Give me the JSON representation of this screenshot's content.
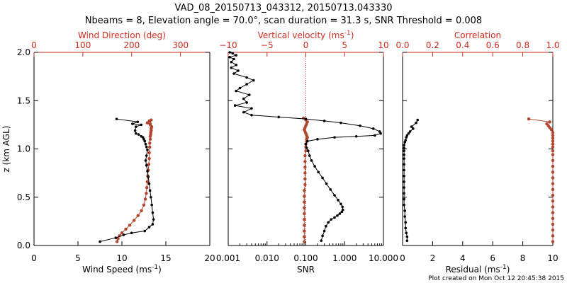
{
  "title_line1": "VAD_08_20150713_043312, 20150713.043330",
  "title_line2": "Nbeams = 8, Elevation angle = 70.0°, scan duration = 31.3 s, SNR Threshold = 0.008",
  "footer": "Plot created on Mon Oct 12 20:45:38 2015",
  "colors": {
    "black": "#000000",
    "red": "#d12a1c",
    "brown": "#b0442c"
  },
  "chart_data": [
    {
      "type": "line",
      "panel": "left",
      "ylabel": "z (km AGL)",
      "ylim": [
        0,
        2.0
      ],
      "yticks": [
        "0.0",
        "0.5",
        "1.0",
        "1.5",
        "2.0"
      ],
      "bottom_axis": {
        "label": "Wind Speed (ms⁻¹)",
        "lim": [
          0,
          20
        ],
        "ticks": [
          "0",
          "5",
          "10",
          "15",
          "20"
        ]
      },
      "top_axis": {
        "label": "Wind Direction (deg)",
        "lim": [
          0,
          360
        ],
        "ticks": [
          "0",
          "100",
          "200",
          "300"
        ]
      },
      "series": [
        {
          "axis": "bottom",
          "color": "#000000",
          "x": [
            7.5,
            9.3,
            10.2,
            11.1,
            12.6,
            13.1,
            13.5,
            13.6,
            13.5,
            13.4,
            13.3,
            13.2,
            13.1,
            13.0,
            12.9,
            12.8,
            12.7,
            12.8,
            12.9,
            12.8,
            12.7,
            12.6,
            12.5,
            12.4,
            12.2,
            11.9,
            11.6,
            11.5,
            11.6,
            12.2,
            11.2,
            11.8,
            9.4
          ],
          "y": [
            0.04,
            0.08,
            0.11,
            0.13,
            0.15,
            0.19,
            0.22,
            0.27,
            0.34,
            0.42,
            0.5,
            0.57,
            0.64,
            0.71,
            0.77,
            0.83,
            0.88,
            0.93,
            0.99,
            1.02,
            1.05,
            1.08,
            1.1,
            1.12,
            1.13,
            1.15,
            1.16,
            1.19,
            1.23,
            1.25,
            1.26,
            1.28,
            1.31
          ]
        },
        {
          "axis": "top",
          "color": "#b0442c",
          "x": [
            170,
            172,
            175,
            180,
            188,
            196,
            205,
            213,
            220,
            225,
            228,
            230,
            231,
            232,
            233,
            234,
            235,
            236,
            236,
            237,
            237,
            238,
            238,
            239,
            239,
            240,
            240,
            241,
            238,
            232,
            236,
            240,
            238
          ],
          "y": [
            0.04,
            0.07,
            0.1,
            0.13,
            0.17,
            0.21,
            0.26,
            0.31,
            0.36,
            0.42,
            0.48,
            0.54,
            0.6,
            0.66,
            0.72,
            0.78,
            0.84,
            0.9,
            0.96,
            1.02,
            1.06,
            1.1,
            1.13,
            1.15,
            1.17,
            1.19,
            1.21,
            1.23,
            1.25,
            1.27,
            1.29,
            1.3,
            1.26
          ]
        }
      ]
    },
    {
      "type": "line",
      "panel": "middle",
      "ylim": [
        0,
        2.0
      ],
      "bottom_axis": {
        "label": "SNR",
        "scale": "log",
        "lim": [
          0.001,
          10
        ],
        "ticks": [
          "0.001",
          "0.010",
          "0.100",
          "1.000",
          "10.000"
        ]
      },
      "top_axis": {
        "label": "Vertical velocity (ms⁻¹)",
        "lim": [
          -10,
          10
        ],
        "ticks": [
          "−10",
          "−5",
          "0",
          "5",
          "10"
        ]
      },
      "zero_line_color": "#d12a1c",
      "series": [
        {
          "axis": "bottom",
          "color": "#000000",
          "x": [
            0.25,
            0.27,
            0.3,
            0.33,
            0.38,
            0.45,
            0.55,
            0.65,
            0.75,
            0.85,
            0.9,
            0.88,
            0.8,
            0.68,
            0.55,
            0.43,
            0.34,
            0.27,
            0.21,
            0.17,
            0.14,
            0.125,
            0.115,
            0.105,
            0.1,
            0.11,
            0.2,
            0.55,
            2.0,
            6.0,
            8.5,
            8.0,
            5.5,
            2.5,
            0.8,
            0.3,
            0.1,
            0.02,
            0.004,
            0.0025,
            0.004,
            0.0015,
            0.003,
            0.0025,
            0.0035,
            0.0016,
            0.002,
            0.003,
            0.0045,
            0.003,
            0.0014,
            0.0018,
            0.0012,
            0.0016,
            0.0012,
            0.0014,
            0.0011,
            0.0016,
            0.0013,
            0.0011
          ],
          "y": [
            0.05,
            0.1,
            0.15,
            0.2,
            0.24,
            0.27,
            0.29,
            0.31,
            0.33,
            0.35,
            0.37,
            0.4,
            0.43,
            0.47,
            0.52,
            0.58,
            0.64,
            0.7,
            0.76,
            0.82,
            0.88,
            0.93,
            0.98,
            1.01,
            1.05,
            1.08,
            1.1,
            1.12,
            1.13,
            1.14,
            1.16,
            1.18,
            1.21,
            1.24,
            1.27,
            1.29,
            1.31,
            1.33,
            1.35,
            1.38,
            1.42,
            1.45,
            1.48,
            1.52,
            1.56,
            1.6,
            1.63,
            1.67,
            1.71,
            1.74,
            1.78,
            1.81,
            1.84,
            1.87,
            1.9,
            1.93,
            1.95,
            1.97,
            1.99,
            2.0
          ]
        },
        {
          "axis": "top",
          "color": "#b0442c",
          "x": [
            -0.2,
            -0.2,
            -0.2,
            -0.2,
            -0.2,
            -0.2,
            -0.2,
            -0.2,
            -0.2,
            -0.2,
            -0.1,
            -0.1,
            -0.1,
            -0.1,
            -0.1,
            -0.1,
            0.0,
            0.0,
            0.0,
            0.1,
            0.1,
            0.2,
            0.1,
            0.0,
            -0.1,
            -0.2,
            -0.1,
            0.0,
            0.1,
            0.2,
            0.0,
            -0.3
          ],
          "y": [
            0.04,
            0.09,
            0.15,
            0.21,
            0.27,
            0.33,
            0.39,
            0.45,
            0.51,
            0.57,
            0.63,
            0.69,
            0.75,
            0.81,
            0.87,
            0.93,
            0.98,
            1.02,
            1.05,
            1.08,
            1.1,
            1.12,
            1.14,
            1.16,
            1.18,
            1.2,
            1.22,
            1.24,
            1.26,
            1.28,
            1.3,
            1.32
          ]
        }
      ]
    },
    {
      "type": "line",
      "panel": "right",
      "ylim": [
        0,
        2.0
      ],
      "bottom_axis": {
        "label": "Residual (ms⁻¹)",
        "lim": [
          0,
          10
        ],
        "ticks": [
          "0",
          "2",
          "4",
          "6",
          "8",
          "10"
        ]
      },
      "top_axis": {
        "label": "Correlation",
        "lim": [
          0,
          1.0
        ],
        "ticks": [
          "0.0",
          "0.2",
          "0.4",
          "0.6",
          "0.8",
          "1.0"
        ]
      },
      "series": [
        {
          "axis": "bottom",
          "color": "#000000",
          "x": [
            0.3,
            0.3,
            0.25,
            0.2,
            0.2,
            0.15,
            0.15,
            0.1,
            0.1,
            0.1,
            0.1,
            0.1,
            0.1,
            0.1,
            0.1,
            0.1,
            0.1,
            0.1,
            0.1,
            0.1,
            0.15,
            0.2,
            0.25,
            0.3,
            0.4,
            0.5,
            0.7,
            0.6,
            0.9,
            1.0
          ],
          "y": [
            0.05,
            0.09,
            0.13,
            0.18,
            0.24,
            0.3,
            0.36,
            0.42,
            0.48,
            0.54,
            0.6,
            0.66,
            0.72,
            0.78,
            0.84,
            0.9,
            0.94,
            0.98,
            1.01,
            1.04,
            1.07,
            1.09,
            1.12,
            1.14,
            1.16,
            1.18,
            1.21,
            1.23,
            1.27,
            1.3
          ]
        },
        {
          "axis": "top",
          "color": "#b0442c",
          "x": [
            1.0,
            1.0,
            1.0,
            1.0,
            1.0,
            1.0,
            1.0,
            1.0,
            1.0,
            1.0,
            1.0,
            1.0,
            1.0,
            1.0,
            1.0,
            1.0,
            1.0,
            1.0,
            1.0,
            1.0,
            1.0,
            1.0,
            1.0,
            0.99,
            0.98,
            0.97,
            0.96,
            0.98,
            0.84
          ],
          "y": [
            0.04,
            0.1,
            0.16,
            0.22,
            0.28,
            0.34,
            0.4,
            0.46,
            0.52,
            0.58,
            0.64,
            0.7,
            0.76,
            0.82,
            0.88,
            0.94,
            0.98,
            1.02,
            1.05,
            1.08,
            1.11,
            1.14,
            1.17,
            1.2,
            1.22,
            1.24,
            1.26,
            1.28,
            1.31
          ]
        }
      ]
    }
  ]
}
